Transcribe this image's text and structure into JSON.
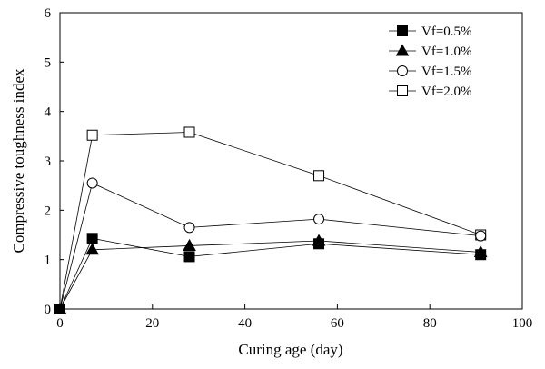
{
  "chart_data": {
    "type": "line",
    "title": "",
    "xlabel": "Curing age (day)",
    "ylabel": "Compressive toughness index",
    "xlim": [
      0,
      100
    ],
    "ylim": [
      0,
      6
    ],
    "xticks": [
      0,
      20,
      40,
      60,
      80,
      100
    ],
    "yticks": [
      0,
      1,
      2,
      3,
      4,
      5,
      6
    ],
    "xtick_labels": [
      "0",
      "20",
      "40",
      "60",
      "80",
      "100"
    ],
    "ytick_labels": [
      "0",
      "1",
      "2",
      "3",
      "4",
      "5",
      "6"
    ],
    "grid": false,
    "legend_position": "top-right",
    "series": [
      {
        "name": "Vf=0.5%",
        "marker": "filled-square",
        "x": [
          0,
          7,
          28,
          56,
          91
        ],
        "y": [
          0,
          1.43,
          1.06,
          1.32,
          1.1
        ]
      },
      {
        "name": "Vf=1.0%",
        "marker": "filled-triangle",
        "x": [
          0,
          7,
          28,
          56,
          91
        ],
        "y": [
          0,
          1.2,
          1.28,
          1.38,
          1.15
        ]
      },
      {
        "name": "Vf=1.5%",
        "marker": "open-circle",
        "x": [
          0,
          7,
          28,
          56,
          91
        ],
        "y": [
          0,
          2.55,
          1.65,
          1.82,
          1.48
        ]
      },
      {
        "name": "Vf=2.0%",
        "marker": "open-square",
        "x": [
          0,
          7,
          28,
          56,
          91
        ],
        "y": [
          0,
          3.52,
          3.58,
          2.7,
          1.5
        ]
      }
    ]
  }
}
